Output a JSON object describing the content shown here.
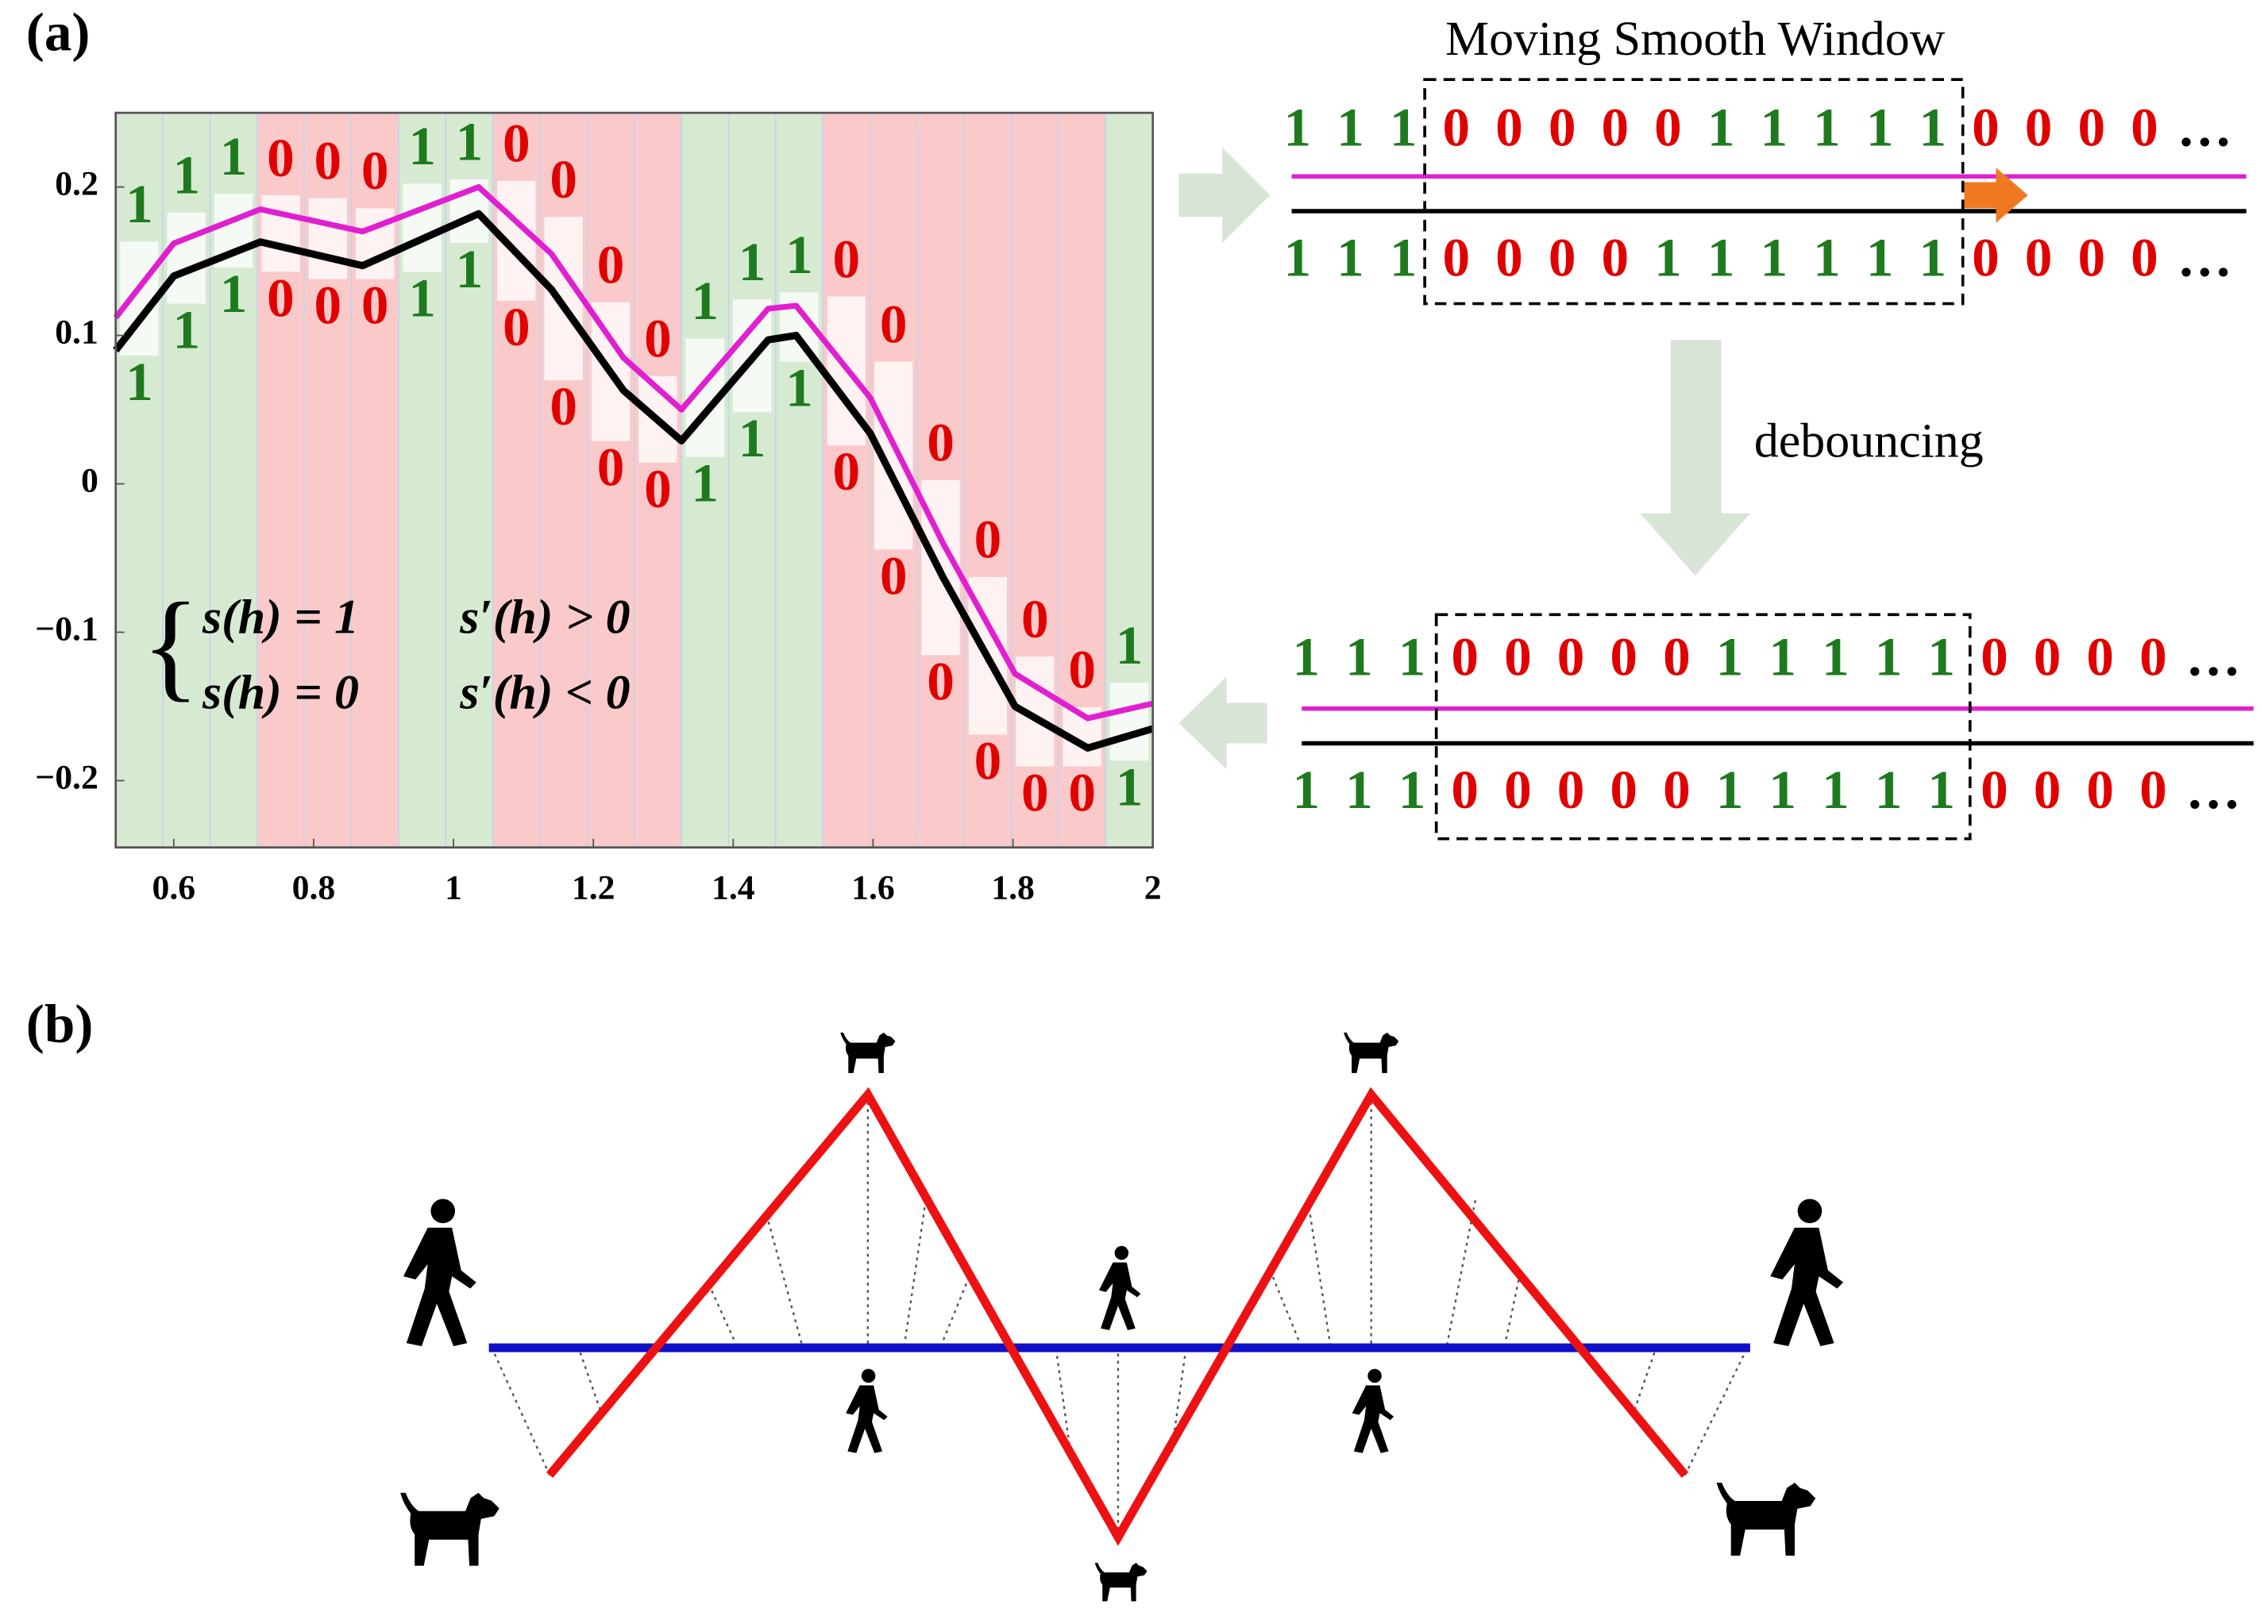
{
  "panel_labels": [
    "(a)",
    "(b)"
  ],
  "chart_data": {
    "type": "line",
    "x": [
      0.517,
      0.6,
      0.724,
      0.87,
      1.036,
      1.14,
      1.243,
      1.326,
      1.45,
      1.49,
      1.596,
      1.7,
      1.803,
      1.907,
      2.0
    ],
    "series": [
      {
        "color": "#e020d0",
        "values": [
          0.112,
          0.162,
          0.185,
          0.17,
          0.2,
          0.155,
          0.085,
          0.05,
          0.118,
          0.12,
          0.058,
          -0.04,
          -0.128,
          -0.158,
          -0.148
        ]
      },
      {
        "color": "#000000",
        "values": [
          0.09,
          0.14,
          0.163,
          0.147,
          0.182,
          0.131,
          0.063,
          0.029,
          0.097,
          0.1,
          0.034,
          -0.063,
          -0.15,
          -0.178,
          -0.165
        ]
      }
    ],
    "xlim": [
      0.517,
      2.0
    ],
    "ylim": [
      -0.245,
      0.25
    ],
    "xticks": [
      0.6,
      0.8,
      1,
      1.2,
      1.4,
      1.6,
      1.8,
      2
    ],
    "yticks": [
      0.2,
      0.1,
      0,
      {
        "value": -0.1,
        "label": "−0.1"
      },
      {
        "value": -0.2,
        "label": "−0.2"
      }
    ],
    "column_states_top": [
      "1",
      "1",
      "1",
      "0",
      "0",
      "0",
      "1",
      "1",
      "0",
      "0",
      "0",
      "0",
      "1",
      "1",
      "1",
      "0",
      "0",
      "0",
      "0",
      "0",
      "0",
      "1"
    ],
    "column_states_bottom": [
      "1",
      "1",
      "1",
      "0",
      "0",
      "0",
      "1",
      "1",
      "0",
      "0",
      "0",
      "0",
      "1",
      "1",
      "1",
      "0",
      "0",
      "0",
      "0",
      "0",
      "0",
      "1"
    ],
    "column_colors": {
      "1": "#d6ead2",
      "0": "#fac9c9"
    },
    "digit_colors": {
      "1": "#1f7a1f",
      "0": "#e00000"
    },
    "equations": [
      {
        "lhs": "s(h) = 1",
        "cond": "s′(h) > 0"
      },
      {
        "lhs": "s(h) = 0",
        "cond": "s′(h) < 0"
      }
    ]
  },
  "window_title": "Moving Smooth Window",
  "process_label": "debouncing",
  "sequence_rows": [
    {
      "digits": [
        "1",
        "1",
        "1",
        "0",
        "0",
        "0",
        "0",
        "0",
        "1",
        "1",
        "1",
        "1",
        "1",
        "0",
        "0",
        "0",
        "0"
      ],
      "ellipsis": "…"
    },
    {
      "digits": [
        "1",
        "1",
        "1",
        "0",
        "0",
        "0",
        "0",
        "1",
        "1",
        "1",
        "1",
        "1",
        "1",
        "0",
        "0",
        "0",
        "0"
      ],
      "ellipsis": "…"
    },
    {
      "digits": [
        "1",
        "1",
        "1",
        "0",
        "0",
        "0",
        "0",
        "0",
        "1",
        "1",
        "1",
        "1",
        "1",
        "0",
        "0",
        "0",
        "0"
      ],
      "ellipsis": "…"
    },
    {
      "digits": [
        "1",
        "1",
        "1",
        "0",
        "0",
        "0",
        "0",
        "0",
        "1",
        "1",
        "1",
        "1",
        "1",
        "0",
        "0",
        "0",
        "0"
      ],
      "ellipsis": "…"
    }
  ]
}
